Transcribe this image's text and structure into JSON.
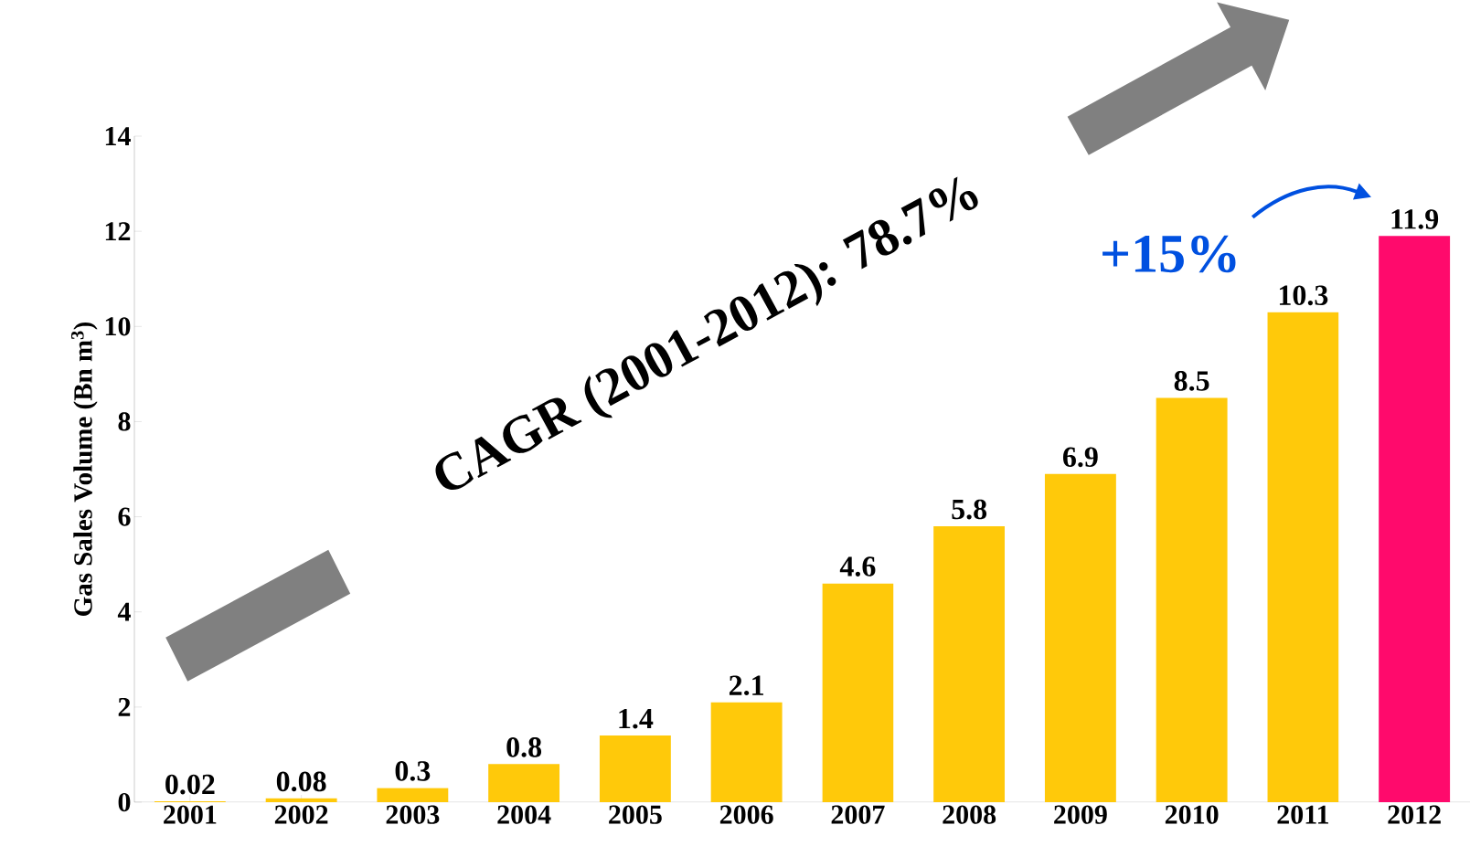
{
  "chart_data": {
    "type": "bar",
    "ylabel": "Gas Sales Volume  (Bn m$^{3}$)",
    "categories": [
      "2001",
      "2002",
      "2003",
      "2004",
      "2005",
      "2006",
      "2007",
      "2008",
      "2009",
      "2010",
      "2011",
      "2012"
    ],
    "values": [
      0.02,
      0.08,
      0.3,
      0.8,
      1.4,
      2.1,
      4.6,
      5.8,
      6.9,
      8.5,
      10.3,
      11.9
    ],
    "colors": [
      "#ffc90a",
      "#ffc90a",
      "#ffc90a",
      "#ffc90a",
      "#ffc90a",
      "#ffc90a",
      "#ffc90a",
      "#ffc90a",
      "#ffc90a",
      "#ffc90a",
      "#ffc90a",
      "#ff0a6c"
    ],
    "ylim": [
      0,
      14
    ],
    "yticks": [
      0,
      2,
      4,
      6,
      8,
      10,
      12,
      14
    ],
    "data_labels": true,
    "grid": false,
    "annotations": [
      "CAGR (2001-2012): 78.7%",
      "+15%"
    ]
  }
}
